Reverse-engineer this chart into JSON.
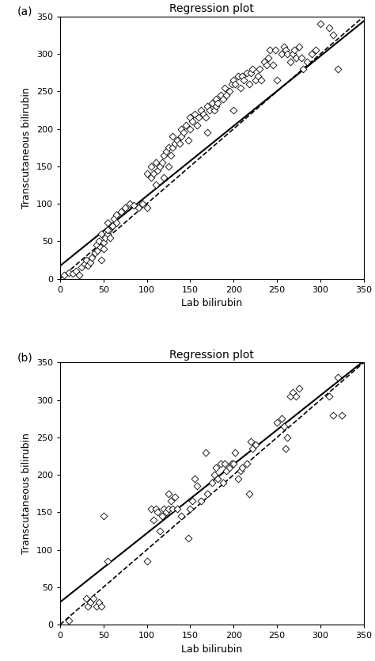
{
  "title": "Regression plot",
  "xlabel": "Lab bilirubin",
  "ylabel": "Transcutaneous bilirubin",
  "xlim": [
    0,
    350
  ],
  "ylim": [
    0,
    350
  ],
  "xticks": [
    0,
    50,
    100,
    150,
    200,
    250,
    300,
    350
  ],
  "yticks": [
    0,
    50,
    100,
    150,
    200,
    250,
    300,
    350
  ],
  "panel_a_x": [
    5,
    10,
    15,
    18,
    22,
    25,
    28,
    30,
    32,
    35,
    37,
    40,
    42,
    43,
    45,
    47,
    48,
    50,
    52,
    55,
    55,
    57,
    58,
    60,
    62,
    65,
    48,
    50,
    55,
    60,
    65,
    70,
    75,
    80,
    85,
    90,
    95,
    100,
    100,
    105,
    105,
    108,
    110,
    110,
    112,
    115,
    118,
    120,
    120,
    122,
    125,
    125,
    128,
    130,
    130,
    132,
    135,
    138,
    140,
    140,
    142,
    145,
    148,
    150,
    150,
    152,
    155,
    158,
    160,
    162,
    165,
    168,
    170,
    170,
    172,
    175,
    178,
    180,
    180,
    182,
    185,
    188,
    190,
    192,
    195,
    198,
    200,
    200,
    202,
    205,
    208,
    210,
    212,
    215,
    218,
    220,
    222,
    225,
    228,
    230,
    232,
    235,
    238,
    240,
    242,
    245,
    248,
    250,
    255,
    258,
    260,
    262,
    265,
    268,
    270,
    272,
    275,
    278,
    280,
    285,
    290,
    295,
    300,
    310,
    315,
    320
  ],
  "panel_a_y": [
    5,
    8,
    7,
    10,
    5,
    15,
    20,
    25,
    18,
    22,
    28,
    35,
    45,
    38,
    50,
    42,
    60,
    48,
    55,
    60,
    75,
    65,
    55,
    70,
    80,
    75,
    25,
    40,
    65,
    70,
    85,
    90,
    95,
    100,
    98,
    95,
    100,
    140,
    95,
    135,
    150,
    140,
    155,
    125,
    145,
    150,
    155,
    165,
    135,
    170,
    150,
    175,
    165,
    175,
    190,
    180,
    185,
    180,
    190,
    200,
    195,
    205,
    185,
    200,
    215,
    210,
    220,
    205,
    215,
    225,
    220,
    215,
    230,
    195,
    225,
    235,
    225,
    240,
    230,
    235,
    245,
    240,
    255,
    245,
    250,
    260,
    265,
    225,
    260,
    270,
    255,
    270,
    265,
    275,
    260,
    275,
    280,
    265,
    270,
    280,
    265,
    290,
    285,
    295,
    305,
    285,
    305,
    265,
    300,
    310,
    305,
    300,
    290,
    300,
    305,
    295,
    310,
    295,
    280,
    290,
    300,
    305,
    340,
    335,
    325,
    280
  ],
  "panel_a_reg_slope": 0.934,
  "panel_a_reg_intercept": 17,
  "panel_b_x": [
    10,
    30,
    32,
    35,
    38,
    42,
    45,
    48,
    50,
    55,
    100,
    105,
    108,
    110,
    112,
    115,
    118,
    120,
    122,
    125,
    125,
    128,
    130,
    132,
    135,
    140,
    148,
    150,
    152,
    155,
    158,
    162,
    168,
    170,
    175,
    178,
    180,
    182,
    185,
    188,
    190,
    192,
    195,
    198,
    200,
    202,
    205,
    208,
    210,
    215,
    218,
    220,
    222,
    225,
    250,
    255,
    258,
    260,
    262,
    265,
    268,
    272,
    275,
    310,
    315,
    320,
    325
  ],
  "panel_b_y": [
    5,
    35,
    25,
    30,
    35,
    25,
    30,
    25,
    145,
    85,
    85,
    155,
    140,
    155,
    150,
    125,
    145,
    155,
    150,
    155,
    175,
    165,
    155,
    170,
    155,
    145,
    115,
    155,
    165,
    195,
    185,
    165,
    230,
    175,
    190,
    200,
    210,
    195,
    215,
    190,
    215,
    205,
    210,
    215,
    215,
    230,
    195,
    205,
    210,
    215,
    175,
    245,
    235,
    240,
    270,
    275,
    265,
    235,
    250,
    305,
    310,
    305,
    315,
    305,
    280,
    330,
    280
  ],
  "panel_b_reg_slope": 0.92,
  "panel_b_reg_intercept": 30,
  "marker_color": "#000000",
  "marker_facecolor": "white",
  "marker_size": 4.5,
  "line_color": "#000000",
  "dashed_color": "#000000",
  "label_fontsize": 9,
  "title_fontsize": 10,
  "tick_fontsize": 8
}
